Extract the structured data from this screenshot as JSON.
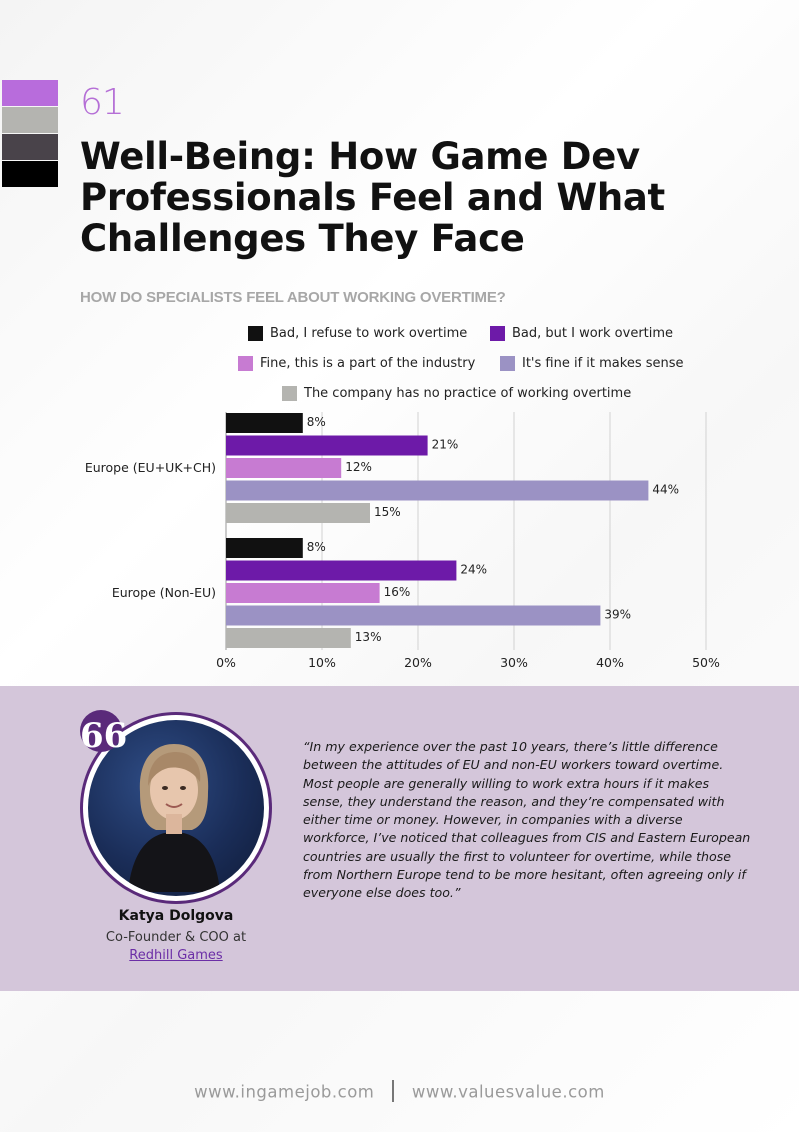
{
  "page_number": "61",
  "page_title": "Well-Being: How Game Dev Professionals Feel and What Challenges They Face",
  "swatch_colors": [
    "#b86cdc",
    "#b4b4b0",
    "#49434a",
    "#000000"
  ],
  "chart_data": {
    "type": "bar",
    "orientation": "horizontal",
    "title": "HOW DO SPECIALISTS FEEL ABOUT WORKING OVERTIME?",
    "categories": [
      "Europe (EU+UK+CH)",
      "Europe (Non-EU)"
    ],
    "series": [
      {
        "name": "Bad, I refuse to work overtime",
        "color": "#111111",
        "values": [
          8,
          8
        ],
        "labels": [
          "8%",
          "8%"
        ]
      },
      {
        "name": "Bad, but I work overtime",
        "color": "#6d1aa8",
        "values": [
          21,
          24
        ],
        "labels": [
          "21%",
          "24%"
        ]
      },
      {
        "name": "Fine, this is a part of the industry",
        "color": "#c77bd2",
        "values": [
          12,
          16
        ],
        "labels": [
          "12%",
          "16%"
        ]
      },
      {
        "name": "It's fine if it makes sense",
        "color": "#9b92c4",
        "values": [
          44,
          39
        ],
        "labels": [
          "44%",
          "39%"
        ]
      },
      {
        "name": "The company has no practice of working overtime",
        "color": "#b4b4b0",
        "values": [
          15,
          13
        ],
        "labels": [
          "15%",
          "13%"
        ]
      }
    ],
    "xlim": [
      0,
      50
    ],
    "xticks": [
      0,
      10,
      20,
      30,
      40,
      50
    ],
    "xtick_labels": [
      "0%",
      "10%",
      "20%",
      "30%",
      "40%",
      "50%"
    ],
    "grid": true,
    "legend_placement": "top"
  },
  "quote": {
    "text": "“In my experience over the past 10 years, there’s little difference between the attitudes of EU and non-EU workers toward overtime. Most people are generally willing to work extra hours if it makes sense, they understand the reason, and they’re compensated with either time or money. However, in companies with a diverse workforce, I’ve noticed that colleagues from CIS and Eastern European countries are usually the first to volunteer for overtime, while those from Northern Europe tend to be more hesitant, often agreeing only if everyone else does too.”",
    "icon": "quote-icon",
    "mark": "66",
    "accent_color": "#5a2a7a",
    "band_color": "#d4c6da"
  },
  "person": {
    "name": "Katya Dolgova",
    "role": "Co-Founder & COO at",
    "company": "Redhill Games"
  },
  "footer": {
    "site1": "www.ingamejob.com",
    "site2": "www.valuesvalue.com"
  }
}
